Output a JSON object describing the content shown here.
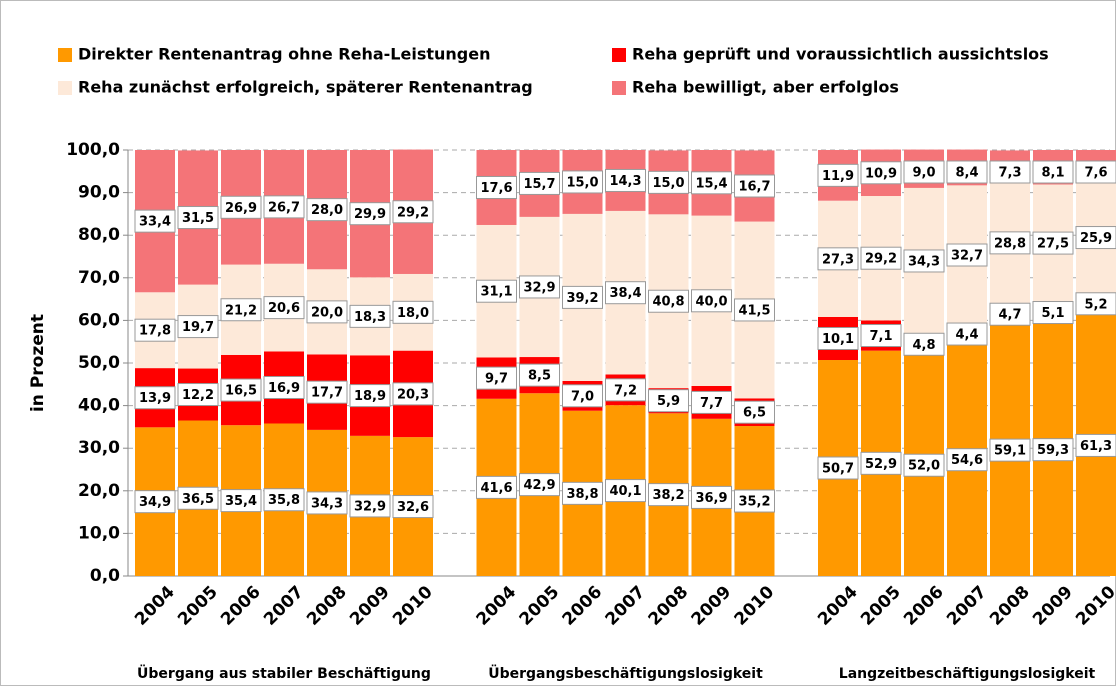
{
  "chart_data": {
    "type": "stacked_bar",
    "y_label": "in Prozent",
    "categories": [
      "2004",
      "2005",
      "2006",
      "2007",
      "2008",
      "2009",
      "2010",
      "2004",
      "2005",
      "2006",
      "2007",
      "2008",
      "2009",
      "2010",
      "2004",
      "2005",
      "2006",
      "2007",
      "2008",
      "2009",
      "2010"
    ],
    "group_labels": [
      "Übergang aus stabiler Beschäftigung",
      "Übergangsbeschäftigungslosigkeit",
      "Langzeitbeschäftigungslosigkeit"
    ],
    "ylim": [
      0,
      100
    ],
    "yticks": [
      {
        "value": 0,
        "label": "0,0"
      },
      {
        "value": 10,
        "label": "10,0"
      },
      {
        "value": 20,
        "label": "20,0"
      },
      {
        "value": 30,
        "label": "30,0"
      },
      {
        "value": 40,
        "label": "40,0"
      },
      {
        "value": 50,
        "label": "50,0"
      },
      {
        "value": 60,
        "label": "60,0"
      },
      {
        "value": 70,
        "label": "70,0"
      },
      {
        "value": 80,
        "label": "80,0"
      },
      {
        "value": 90,
        "label": "90,0"
      },
      {
        "value": 100,
        "label": "100,0"
      }
    ],
    "grid": true,
    "series": [
      {
        "name": "Direkter Rentenantrag ohne Reha-Leistungen",
        "color": "#ff9900",
        "values": [
          34.9,
          36.5,
          35.4,
          35.8,
          34.3,
          32.9,
          32.6,
          41.6,
          42.9,
          38.8,
          40.1,
          38.2,
          36.9,
          35.2,
          50.7,
          52.9,
          52.0,
          54.6,
          59.1,
          59.3,
          61.3
        ],
        "value_labels": [
          "34,9",
          "36,5",
          "35,4",
          "35,8",
          "34,3",
          "32,9",
          "32,6",
          "41,6",
          "42,9",
          "38,8",
          "40,1",
          "38,2",
          "36,9",
          "35,2",
          "50,7",
          "52,9",
          "52,0",
          "54,6",
          "59,1",
          "59,3",
          "61,3"
        ]
      },
      {
        "name": "Reha geprüft und voraussichtlich aussichtslos",
        "color": "#ff0000",
        "values": [
          13.9,
          12.2,
          16.5,
          16.9,
          17.7,
          18.9,
          20.3,
          9.7,
          8.5,
          7.0,
          7.2,
          5.9,
          7.7,
          6.5,
          10.1,
          7.1,
          4.8,
          4.4,
          4.7,
          5.1,
          5.2
        ],
        "value_labels": [
          "13,9",
          "12,2",
          "16,5",
          "16,9",
          "17,7",
          "18,9",
          "20,3",
          "9,7",
          "8,5",
          "7,0",
          "7,2",
          "5,9",
          "7,7",
          "6,5",
          "10,1",
          "7,1",
          "4,8",
          "4,4",
          "4,7",
          "5,1",
          "5,2"
        ]
      },
      {
        "name": "Reha zunächst erfolgreich, späterer Rentenantrag",
        "color": "#fde9d9",
        "values": [
          17.8,
          19.7,
          21.2,
          20.6,
          20.0,
          18.3,
          18.0,
          31.1,
          32.9,
          39.2,
          38.4,
          40.8,
          40.0,
          41.5,
          27.3,
          29.2,
          34.3,
          32.7,
          28.8,
          27.5,
          25.9
        ],
        "value_labels": [
          "17,8",
          "19,7",
          "21,2",
          "20,6",
          "20,0",
          "18,3",
          "18,0",
          "31,1",
          "32,9",
          "39,2",
          "38,4",
          "40,8",
          "40,0",
          "41,5",
          "27,3",
          "29,2",
          "34,3",
          "32,7",
          "28,8",
          "27,5",
          "25,9"
        ]
      },
      {
        "name": "Reha bewilligt, aber erfolglos",
        "color": "#f47478",
        "values": [
          33.4,
          31.5,
          26.9,
          26.7,
          28.0,
          29.9,
          29.2,
          17.6,
          15.7,
          15.0,
          14.3,
          15.0,
          15.4,
          16.7,
          11.9,
          10.9,
          9.0,
          8.4,
          7.3,
          8.1,
          7.6
        ],
        "value_labels": [
          "33,4",
          "31,5",
          "26,9",
          "26,7",
          "28,0",
          "29,9",
          "29,2",
          "17,6",
          "15,7",
          "15,0",
          "14,3",
          "15,0",
          "15,4",
          "16,7",
          "11,9",
          "10,9",
          "9,0",
          "8,4",
          "7,3",
          "8,1",
          "7,6"
        ]
      }
    ]
  }
}
